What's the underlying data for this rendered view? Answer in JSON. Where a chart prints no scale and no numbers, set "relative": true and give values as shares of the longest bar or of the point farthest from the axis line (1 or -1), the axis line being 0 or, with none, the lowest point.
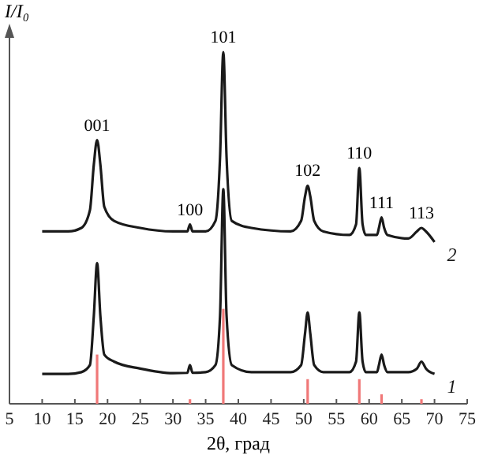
{
  "chart_data": {
    "type": "line",
    "relative": true,
    "xlabel": "2θ, град",
    "ylabel": "I/I₀",
    "xlim": [
      5,
      75
    ],
    "xticks": [
      5,
      10,
      15,
      20,
      25,
      30,
      35,
      40,
      45,
      50,
      55,
      60,
      65,
      70,
      75
    ],
    "tick_labels": "x",
    "series": [
      {
        "name": "2",
        "color": "#1a1a1a",
        "x": [
          10,
          14,
          16,
          17.3,
          17.9,
          18.4,
          18.9,
          19.5,
          21,
          25,
          30,
          32.2,
          32.6,
          33,
          35,
          36.5,
          37.2,
          37.7,
          38.2,
          39,
          42,
          48,
          49.6,
          50.2,
          50.6,
          51,
          51.6,
          53,
          57,
          58,
          58.5,
          59,
          59.5,
          61.2,
          61.5,
          61.9,
          62.3,
          62.8,
          66,
          67.3,
          68,
          68.7,
          70
        ],
        "values": [
          0.49,
          0.49,
          0.5,
          0.55,
          0.68,
          0.75,
          0.68,
          0.56,
          0.52,
          0.5,
          0.49,
          0.49,
          0.51,
          0.49,
          0.49,
          0.52,
          0.7,
          1,
          0.7,
          0.52,
          0.5,
          0.49,
          0.52,
          0.59,
          0.62,
          0.59,
          0.52,
          0.49,
          0.48,
          0.51,
          0.67,
          0.51,
          0.48,
          0.48,
          0.5,
          0.53,
          0.5,
          0.48,
          0.47,
          0.49,
          0.5,
          0.49,
          0.46
        ]
      },
      {
        "name": "1",
        "color": "#1a1a1a",
        "x": [
          10,
          14,
          16,
          17.3,
          17.9,
          18.4,
          18.9,
          19.5,
          21,
          25,
          30,
          32.2,
          32.6,
          33,
          35,
          36.5,
          37.2,
          37.7,
          38.2,
          39,
          42,
          48,
          49.6,
          50.2,
          50.6,
          51,
          51.6,
          53,
          57,
          58,
          58.5,
          59,
          59.5,
          61.2,
          61.5,
          61.9,
          62.3,
          62.8,
          66,
          67.3,
          68,
          68.7,
          70
        ],
        "values": [
          0.085,
          0.085,
          0.09,
          0.11,
          0.25,
          0.4,
          0.25,
          0.14,
          0.12,
          0.1,
          0.087,
          0.088,
          0.11,
          0.088,
          0.09,
          0.11,
          0.25,
          0.61,
          0.25,
          0.11,
          0.09,
          0.09,
          0.11,
          0.2,
          0.26,
          0.2,
          0.11,
          0.09,
          0.09,
          0.12,
          0.26,
          0.12,
          0.09,
          0.09,
          0.11,
          0.14,
          0.11,
          0.09,
          0.09,
          0.1,
          0.12,
          0.1,
          0.085
        ]
      },
      {
        "type": "bar",
        "color": "#f07878",
        "x": [
          18.4,
          32.6,
          37.7,
          50.6,
          58.5,
          61.9,
          68
        ],
        "values": [
          0.14,
          0.013,
          0.27,
          0.07,
          0.07,
          0.027,
          0.013
        ]
      }
    ],
    "annotations": [
      {
        "text": "001",
        "x": 18.4,
        "y": 0.75
      },
      {
        "text": "100",
        "x": 32.6,
        "y": 0.51
      },
      {
        "text": "101",
        "x": 37.7,
        "y": 1
      },
      {
        "text": "102",
        "x": 50.6,
        "y": 0.62
      },
      {
        "text": "110",
        "x": 58.5,
        "y": 0.67
      },
      {
        "text": "111",
        "x": 61.9,
        "y": 0.53
      },
      {
        "text": "113",
        "x": 68,
        "y": 0.5
      }
    ]
  }
}
